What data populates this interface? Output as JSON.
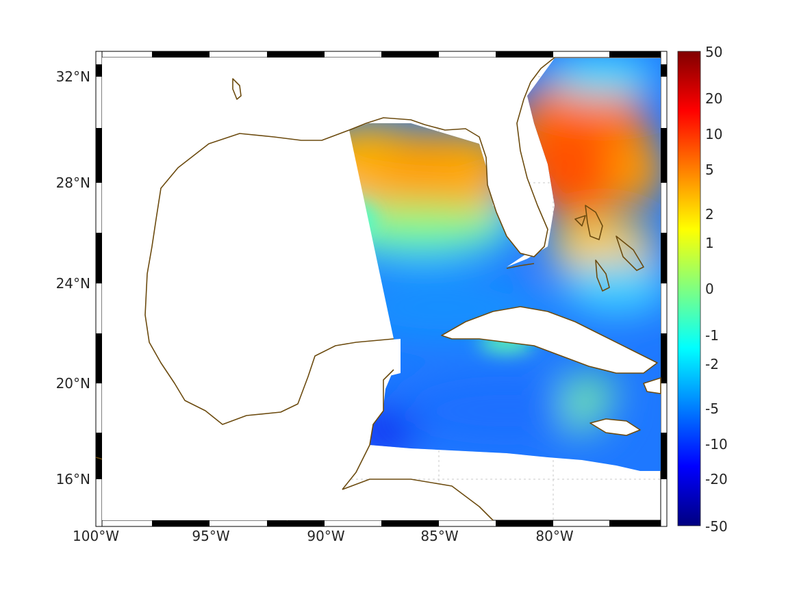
{
  "map": {
    "lon_ticks": [
      "100°W",
      "95°W",
      "90°W",
      "85°W",
      "80°W"
    ],
    "lat_ticks": [
      "32°N",
      "28°N",
      "24°N",
      "20°N",
      "16°N"
    ],
    "colors": {
      "coastline": "#6b4a0e",
      "grid": "#c8c8c8",
      "land": "#ffffff"
    }
  },
  "colorbar": {
    "tick_labels": [
      "50",
      "20",
      "10",
      "5",
      "2",
      "1",
      "0",
      "-1",
      "-2",
      "-5",
      "-10",
      "-20",
      "-50"
    ],
    "colormap": [
      "#800000",
      "#ff0000",
      "#ff8000",
      "#ffff00",
      "#80ff80",
      "#00ffff",
      "#0080ff",
      "#0000ff",
      "#000080"
    ]
  }
}
